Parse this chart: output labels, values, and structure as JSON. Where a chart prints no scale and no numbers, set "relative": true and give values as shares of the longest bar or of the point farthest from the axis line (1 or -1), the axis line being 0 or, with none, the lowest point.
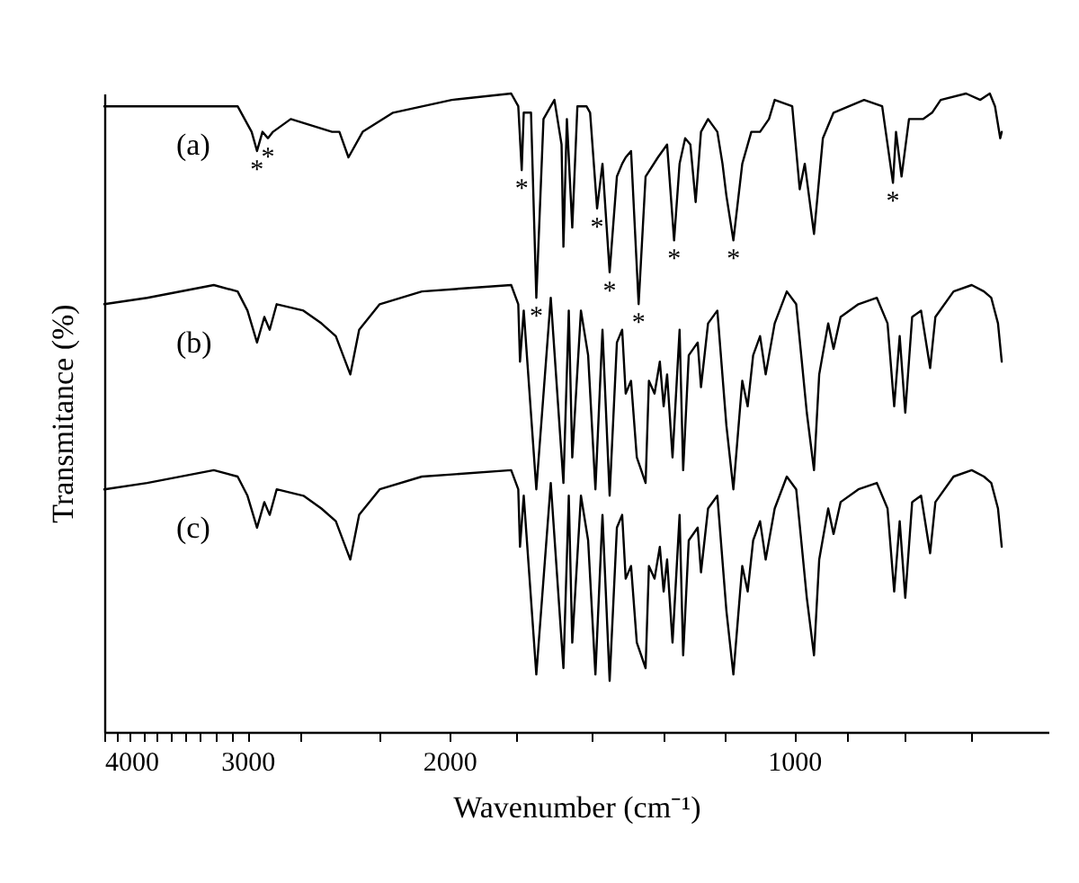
{
  "chart_data": {
    "type": "line",
    "xlabel": "Wavenumber (cm⁻¹)",
    "ylabel": "Transmitance (%)",
    "relative": true,
    "log": "x",
    "grid": false,
    "xlim": [
      4000,
      600
    ],
    "xticks": [
      4000,
      {
        "value": 3900,
        "label": null
      },
      {
        "value": 3800,
        "label": null
      },
      {
        "value": 3700,
        "label": null
      },
      {
        "value": 3600,
        "label": null
      },
      {
        "value": 3500,
        "label": null
      },
      {
        "value": 3400,
        "label": null
      },
      {
        "value": 3300,
        "label": null
      },
      {
        "value": 3200,
        "label": null
      },
      {
        "value": 3100,
        "label": null
      },
      3000,
      {
        "value": 2700,
        "label": null
      },
      {
        "value": 2300,
        "label": null
      },
      2000,
      {
        "value": 1750,
        "label": null
      },
      {
        "value": 1500,
        "label": null
      },
      {
        "value": 1300,
        "label": null
      },
      {
        "value": 1150,
        "label": null
      },
      1000,
      {
        "value": 900,
        "label": null
      },
      {
        "value": 800,
        "label": null
      },
      {
        "value": 700,
        "label": null
      }
    ],
    "series": [
      {
        "name": "(a)",
        "color": "#000000",
        "x": [
          4000,
          3060,
          2975,
          2943,
          2911,
          2879,
          2850,
          2750,
          2531,
          2494,
          2449,
          2380,
          2239,
          1990,
          1766,
          1741,
          1729,
          1722,
          1710,
          1697,
          1679,
          1655,
          1631,
          1619,
          1596,
          1590,
          1579,
          1562,
          1546,
          1518,
          1507,
          1486,
          1470,
          1449,
          1428,
          1413,
          1403,
          1388,
          1367,
          1348,
          1315,
          1291,
          1273,
          1259,
          1245,
          1232,
          1219,
          1206,
          1189,
          1167,
          1155,
          1146,
          1130,
          1110,
          1090,
          1071,
          1052,
          1040,
          1004,
          989,
          979,
          961,
          944,
          924,
          869,
          838,
          820,
          815,
          806,
          794,
          780,
          772,
          758,
          745,
          708,
          688,
          675,
          668,
          661,
          659
        ],
        "values": [
          0.98,
          0.98,
          0.94,
          0.91,
          0.94,
          0.93,
          0.94,
          0.96,
          0.94,
          0.94,
          0.9,
          0.94,
          0.97,
          0.99,
          1.0,
          0.98,
          0.88,
          0.97,
          0.97,
          0.97,
          0.68,
          0.96,
          0.98,
          0.99,
          0.92,
          0.76,
          0.96,
          0.79,
          0.98,
          0.98,
          0.97,
          0.82,
          0.89,
          0.72,
          0.87,
          0.89,
          0.9,
          0.91,
          0.67,
          0.87,
          0.9,
          0.92,
          0.77,
          0.89,
          0.93,
          0.92,
          0.83,
          0.94,
          0.96,
          0.94,
          0.89,
          0.84,
          0.77,
          0.89,
          0.94,
          0.94,
          0.96,
          0.99,
          0.98,
          0.85,
          0.89,
          0.78,
          0.93,
          0.97,
          0.99,
          0.98,
          0.86,
          0.94,
          0.87,
          0.96,
          0.96,
          0.96,
          0.97,
          0.99,
          1.0,
          0.99,
          1.0,
          0.98,
          0.93,
          0.94
        ]
      },
      {
        "name": "(b)",
        "color": "#000000",
        "x": [
          4000,
          3670,
          3210,
          3060,
          3000,
          2943,
          2900,
          2869,
          2829,
          2681,
          2586,
          2512,
          2440,
          2397,
          2300,
          2113,
          1766,
          1741,
          1735,
          1722,
          1679,
          1631,
          1590,
          1573,
          1562,
          1535,
          1513,
          1491,
          1470,
          1449,
          1428,
          1413,
          1403,
          1388,
          1372,
          1348,
          1339,
          1324,
          1310,
          1300,
          1291,
          1277,
          1259,
          1250,
          1236,
          1214,
          1206,
          1189,
          1167,
          1146,
          1130,
          1110,
          1098,
          1086,
          1071,
          1059,
          1040,
          1015,
          996,
          986,
          975,
          961,
          951,
          934,
          924,
          911,
          879,
          847,
          829,
          818,
          809,
          800,
          789,
          775,
          761,
          753,
          726,
          700,
          683,
          673,
          664,
          659
        ],
        "values": [
          0.67,
          0.68,
          0.7,
          0.69,
          0.66,
          0.61,
          0.65,
          0.63,
          0.67,
          0.66,
          0.64,
          0.62,
          0.56,
          0.63,
          0.67,
          0.69,
          0.7,
          0.67,
          0.58,
          0.66,
          0.38,
          0.68,
          0.39,
          0.66,
          0.43,
          0.66,
          0.59,
          0.38,
          0.63,
          0.37,
          0.61,
          0.63,
          0.53,
          0.55,
          0.43,
          0.39,
          0.55,
          0.53,
          0.58,
          0.51,
          0.56,
          0.43,
          0.63,
          0.41,
          0.59,
          0.61,
          0.54,
          0.64,
          0.66,
          0.48,
          0.38,
          0.55,
          0.51,
          0.59,
          0.62,
          0.56,
          0.64,
          0.69,
          0.67,
          0.59,
          0.5,
          0.41,
          0.56,
          0.64,
          0.6,
          0.65,
          0.67,
          0.68,
          0.64,
          0.51,
          0.62,
          0.5,
          0.65,
          0.66,
          0.57,
          0.65,
          0.69,
          0.7,
          0.69,
          0.68,
          0.64,
          0.58
        ]
      },
      {
        "name": "(c)",
        "color": "#000000",
        "x": [
          4000,
          3670,
          3210,
          3060,
          3000,
          2943,
          2900,
          2869,
          2829,
          2681,
          2586,
          2512,
          2440,
          2397,
          2300,
          2113,
          1766,
          1741,
          1735,
          1722,
          1679,
          1631,
          1590,
          1573,
          1562,
          1535,
          1513,
          1491,
          1470,
          1449,
          1428,
          1413,
          1403,
          1388,
          1372,
          1348,
          1339,
          1324,
          1310,
          1300,
          1291,
          1277,
          1259,
          1250,
          1236,
          1214,
          1206,
          1189,
          1167,
          1146,
          1130,
          1110,
          1098,
          1086,
          1071,
          1059,
          1040,
          1015,
          996,
          986,
          975,
          961,
          951,
          934,
          924,
          911,
          879,
          847,
          829,
          818,
          809,
          800,
          789,
          775,
          761,
          753,
          726,
          700,
          683,
          673,
          664,
          659
        ],
        "values": [
          0.38,
          0.39,
          0.41,
          0.4,
          0.37,
          0.32,
          0.36,
          0.34,
          0.38,
          0.37,
          0.35,
          0.33,
          0.27,
          0.34,
          0.38,
          0.4,
          0.41,
          0.38,
          0.29,
          0.37,
          0.09,
          0.39,
          0.1,
          0.37,
          0.14,
          0.37,
          0.3,
          0.09,
          0.34,
          0.08,
          0.32,
          0.34,
          0.24,
          0.26,
          0.14,
          0.1,
          0.26,
          0.24,
          0.29,
          0.22,
          0.27,
          0.14,
          0.34,
          0.12,
          0.3,
          0.32,
          0.25,
          0.35,
          0.37,
          0.19,
          0.09,
          0.26,
          0.22,
          0.3,
          0.33,
          0.27,
          0.35,
          0.4,
          0.38,
          0.3,
          0.21,
          0.12,
          0.27,
          0.35,
          0.31,
          0.36,
          0.38,
          0.39,
          0.35,
          0.22,
          0.33,
          0.21,
          0.36,
          0.37,
          0.28,
          0.36,
          0.4,
          0.41,
          0.4,
          0.39,
          0.35,
          0.29
        ]
      }
    ],
    "annotations": [
      {
        "text": "*",
        "x": 2943,
        "y": 0.91
      },
      {
        "text": "*",
        "x": 2879,
        "y": 0.93
      },
      {
        "text": "*",
        "x": 1729,
        "y": 0.88
      },
      {
        "text": "*",
        "x": 1679,
        "y": 0.68
      },
      {
        "text": "*",
        "x": 1486,
        "y": 0.82
      },
      {
        "text": "*",
        "x": 1449,
        "y": 0.72
      },
      {
        "text": "*",
        "x": 1367,
        "y": 0.67
      },
      {
        "text": "*",
        "x": 1273,
        "y": 0.77
      },
      {
        "text": "*",
        "x": 1130,
        "y": 0.77
      },
      {
        "text": "*",
        "x": 820,
        "y": 0.86
      }
    ]
  }
}
